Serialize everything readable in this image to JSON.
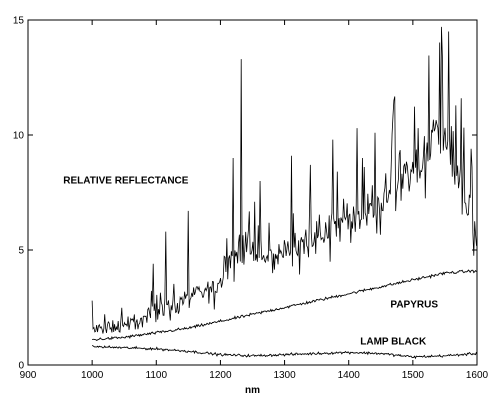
{
  "chart_data": {
    "type": "line",
    "xlabel": "nm",
    "ylabel": "",
    "xlim": [
      900,
      1600
    ],
    "ylim": [
      0,
      15
    ],
    "xticks": [
      "900",
      "1000",
      "1100",
      "1200",
      "1300",
      "1400",
      "1500",
      "1600"
    ],
    "yticks": [
      "0",
      "5",
      "10",
      "15"
    ],
    "grid": false,
    "annotations": [
      {
        "text": "RELATIVE REFLECTANCE",
        "x": 955,
        "y": 7.9
      },
      {
        "text": "PAPYRUS",
        "x": 1465,
        "y": 2.5
      },
      {
        "text": "LAMP BLACK",
        "x": 1418,
        "y": 0.9
      }
    ],
    "series": [
      {
        "x": [
          1000,
          1020,
          1040,
          1060,
          1080,
          1100,
          1120,
          1140,
          1160,
          1180,
          1200,
          1220,
          1240,
          1260,
          1280,
          1300,
          1320,
          1340,
          1360,
          1380,
          1400,
          1420,
          1440,
          1460,
          1480,
          1500,
          1520,
          1540,
          1560,
          1580,
          1600
        ],
        "values": [
          1.5,
          1.6,
          1.7,
          1.8,
          2.0,
          2.3,
          2.6,
          2.8,
          3.0,
          3.2,
          3.5,
          4.8,
          5.2,
          4.5,
          4.6,
          5.0,
          5.2,
          5.5,
          5.8,
          6.0,
          6.5,
          6.8,
          7.0,
          7.3,
          7.8,
          8.2,
          9.0,
          10.5,
          9.0,
          7.0,
          5.5
        ],
        "peaks": [
          [
            1000,
            2.8
          ],
          [
            1095,
            4.4
          ],
          [
            1115,
            5.8
          ],
          [
            1150,
            6.7
          ],
          [
            1220,
            9.0
          ],
          [
            1232,
            13.3
          ],
          [
            1262,
            8.0
          ],
          [
            1310,
            9.1
          ],
          [
            1340,
            8.7
          ],
          [
            1375,
            9.8
          ],
          [
            1412,
            10.3
          ],
          [
            1440,
            10.1
          ],
          [
            1470,
            11.5
          ],
          [
            1508,
            10.3
          ],
          [
            1544,
            14.7
          ],
          [
            1555,
            14.5
          ],
          [
            1575,
            11.6
          ],
          [
            1590,
            9.4
          ]
        ]
      },
      {
        "x": [
          1000,
          1050,
          1100,
          1150,
          1200,
          1250,
          1300,
          1350,
          1400,
          1450,
          1500,
          1550,
          1600
        ],
        "values": [
          1.1,
          1.2,
          1.4,
          1.6,
          1.9,
          2.2,
          2.5,
          2.8,
          3.1,
          3.4,
          3.7,
          4.0,
          4.1
        ]
      },
      {
        "x": [
          1000,
          1050,
          1100,
          1150,
          1200,
          1250,
          1300,
          1350,
          1400,
          1450,
          1500,
          1550,
          1600
        ],
        "values": [
          0.8,
          0.75,
          0.7,
          0.6,
          0.45,
          0.4,
          0.45,
          0.5,
          0.55,
          0.5,
          0.35,
          0.4,
          0.5
        ]
      }
    ]
  }
}
